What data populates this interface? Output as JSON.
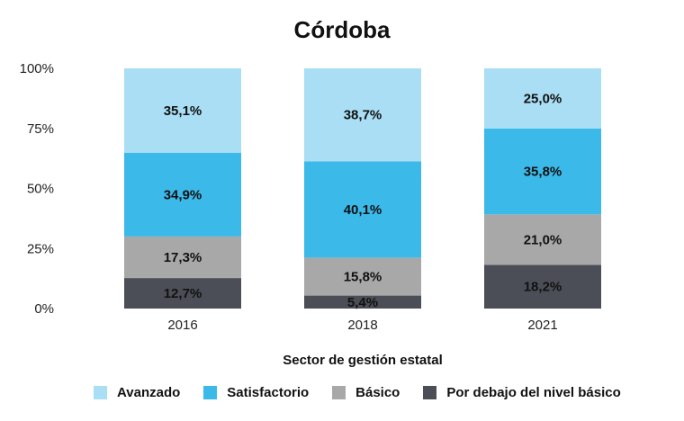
{
  "chart_data": {
    "type": "bar",
    "stacked": true,
    "title": "Córdoba",
    "xlabel": "Sector de gestión estatal",
    "ylabel": "",
    "ylim": [
      0,
      100
    ],
    "yticks": [
      "0%",
      "25%",
      "50%",
      "75%",
      "100%"
    ],
    "ytick_values": [
      0,
      25,
      50,
      75,
      100
    ],
    "categories": [
      "2016",
      "2018",
      "2021"
    ],
    "series": [
      {
        "name": "Por debajo del nivel básico",
        "color": "#4b4e57",
        "values": [
          12.7,
          5.4,
          18.2
        ],
        "labels": [
          "12,7%",
          "5,4%",
          "18,2%"
        ]
      },
      {
        "name": "Básico",
        "color": "#a8a8a8",
        "values": [
          17.3,
          15.8,
          21.0
        ],
        "labels": [
          "17,3%",
          "15,8%",
          "21,0%"
        ]
      },
      {
        "name": "Satisfactorio",
        "color": "#3bb9e9",
        "values": [
          34.9,
          40.1,
          35.8
        ],
        "labels": [
          "34,9%",
          "40,1%",
          "35,8%"
        ]
      },
      {
        "name": "Avanzado",
        "color": "#a9def4",
        "values": [
          35.1,
          38.7,
          25.0
        ],
        "labels": [
          "35,1%",
          "38,7%",
          "25,0%"
        ]
      }
    ],
    "legend_order": [
      "Avanzado",
      "Satisfactorio",
      "Básico",
      "Por debajo del nivel básico"
    ],
    "legend_position": "bottom",
    "grid": false
  }
}
